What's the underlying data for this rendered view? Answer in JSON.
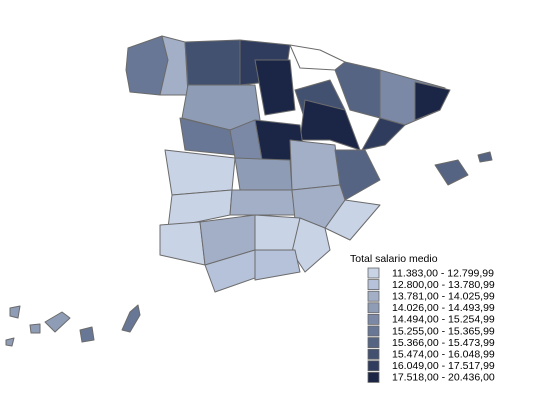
{
  "legend": {
    "title": "Total salario medio",
    "items": [
      {
        "label": "11.383,00 - 12.799,99",
        "color": "#c9d3e6"
      },
      {
        "label": "12.800,00 - 13.780,99",
        "color": "#b6c2d9"
      },
      {
        "label": "13.781,00 - 14.025,99",
        "color": "#a3afc7"
      },
      {
        "label": "14.026,00 - 14.493,99",
        "color": "#8f9cb6"
      },
      {
        "label": "14.494,00 - 15.254,99",
        "color": "#7b89a6"
      },
      {
        "label": "15.255,00 - 15.365,99",
        "color": "#687795"
      },
      {
        "label": "15.366,00 - 15.473,99",
        "color": "#566483"
      },
      {
        "label": "15.474,00 - 16.048,99",
        "color": "#435171"
      },
      {
        "label": "16.049,00 - 17.517,99",
        "color": "#2f3c5d"
      },
      {
        "label": "17.518,00 - 20.436,00",
        "color": "#1b2646"
      }
    ]
  }
}
